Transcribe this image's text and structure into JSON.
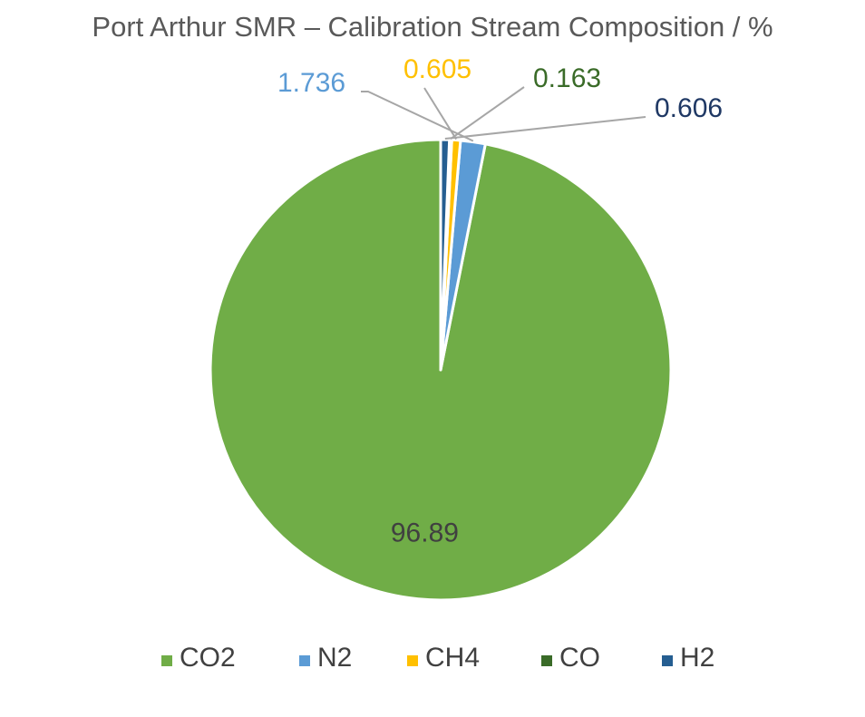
{
  "chart_data": {
    "type": "pie",
    "title": "Port Arthur SMR – Calibration Stream Composition / %",
    "categories": [
      "CO2",
      "N2",
      "CH4",
      "CO",
      "H2"
    ],
    "values": [
      96.89,
      1.736,
      0.605,
      0.163,
      0.606
    ],
    "data_labels": [
      "96.89",
      "1.736",
      "0.605",
      "0.163",
      "0.606"
    ],
    "colors": [
      "#70AD47",
      "#5B9BD5",
      "#FFC000",
      "#3A6B28",
      "#255E91"
    ],
    "label_colors": [
      "#404040",
      "#5B9BD5",
      "#FFC000",
      "#3A6B28",
      "#1F3864"
    ],
    "legend": {
      "position": "bottom"
    },
    "start_angle": "12 o'clock",
    "direction": "counterclockwise"
  }
}
